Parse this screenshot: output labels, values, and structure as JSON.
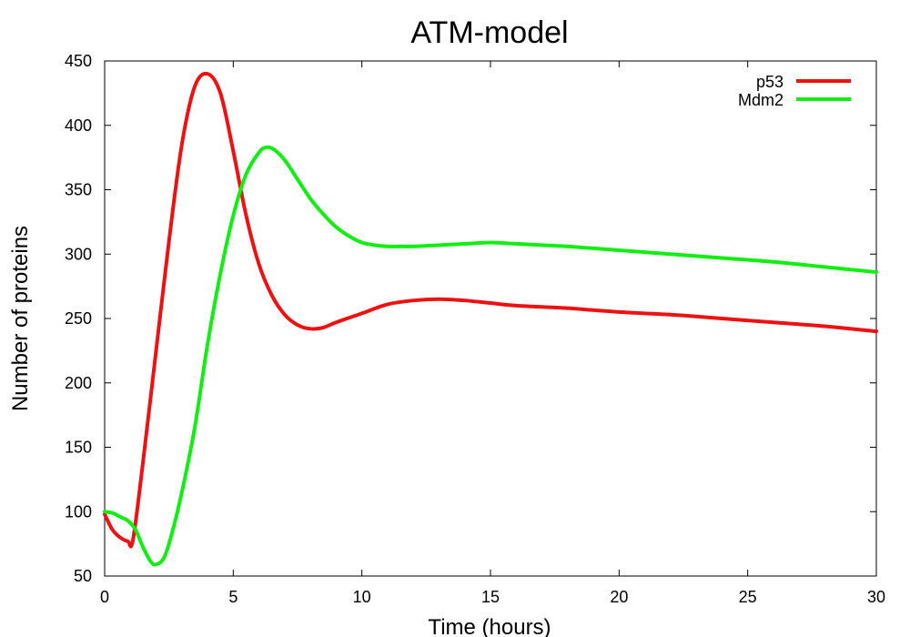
{
  "chart_data": {
    "type": "line",
    "title": "ATM-model",
    "xlabel": "Time (hours)",
    "ylabel": "Number of proteins",
    "xlim": [
      0,
      30
    ],
    "ylim": [
      50,
      450
    ],
    "xticks": [
      0,
      5,
      10,
      15,
      20,
      25,
      30
    ],
    "yticks": [
      50,
      100,
      150,
      200,
      250,
      300,
      350,
      400,
      450
    ],
    "grid": false,
    "legend_position": "top-right",
    "series": [
      {
        "name": "p53",
        "color": "#ee1111",
        "x": [
          0,
          0.3,
          0.6,
          0.9,
          1.1,
          1.5,
          2.0,
          2.5,
          3.0,
          3.5,
          4.0,
          4.5,
          5.0,
          5.5,
          6.0,
          6.5,
          7.0,
          7.5,
          8.0,
          8.5,
          9.0,
          10.0,
          11.0,
          12.0,
          13.0,
          14.0,
          15.0,
          16.0,
          18.0,
          20.0,
          22.0,
          24.0,
          26.0,
          28.0,
          30.0
        ],
        "y": [
          98,
          86,
          80,
          77,
          78,
          140,
          225,
          310,
          385,
          430,
          440,
          425,
          380,
          330,
          292,
          268,
          253,
          245,
          242,
          243,
          247,
          254,
          261,
          264,
          265,
          264,
          262,
          260,
          258,
          255,
          253,
          250,
          247,
          244,
          240
        ]
      },
      {
        "name": "Mdm2",
        "color": "#11ee11",
        "x": [
          0,
          0.3,
          0.6,
          0.9,
          1.2,
          1.5,
          1.8,
          2.0,
          2.3,
          2.6,
          3.0,
          3.5,
          4.0,
          4.5,
          5.0,
          5.5,
          6.0,
          6.3,
          6.6,
          7.0,
          7.5,
          8.0,
          8.5,
          9.0,
          9.5,
          10.0,
          10.5,
          11.0,
          11.5,
          12.0,
          13.0,
          14.0,
          15.0,
          16.0,
          17.0,
          18.0,
          20.0,
          22.0,
          24.0,
          26.0,
          28.0,
          30.0
        ],
        "y": [
          100,
          99,
          96,
          93,
          86,
          72,
          61,
          59,
          64,
          82,
          115,
          165,
          230,
          285,
          330,
          362,
          379,
          383,
          381,
          373,
          358,
          343,
          331,
          321,
          314,
          309,
          307,
          306,
          306,
          306,
          307,
          308,
          309,
          308,
          307,
          306,
          303,
          300,
          297,
          294,
          290,
          286
        ]
      }
    ]
  }
}
